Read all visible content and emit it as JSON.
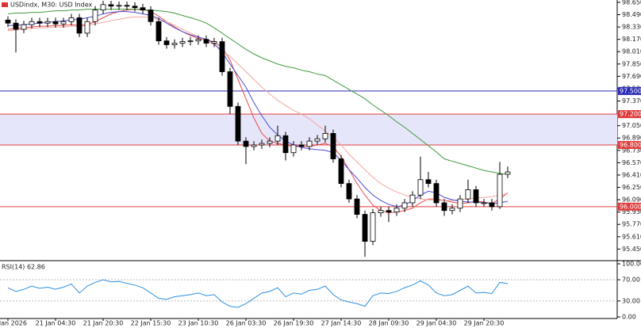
{
  "chart_data": {
    "type": "candlestick",
    "title": "USDindx, M30: USD Index",
    "categories": [
      "20 Jan 2026",
      null,
      null,
      null,
      null,
      null,
      "21 Jan 04:30",
      null,
      null,
      null,
      null,
      null,
      "21 Jan 20:30",
      null,
      null,
      null,
      null,
      null,
      "22 Jan 15:30",
      null,
      null,
      null,
      null,
      null,
      "23 Jan 10:30",
      null,
      null,
      null,
      null,
      null,
      "26 Jan 03:30",
      null,
      null,
      null,
      null,
      null,
      "26 Jan 19:30",
      null,
      null,
      null,
      null,
      null,
      "27 Jan 14:30",
      null,
      null,
      null,
      null,
      null,
      "28 Jan 09:30",
      null,
      null,
      null,
      null,
      null,
      "29 Jan 04:30",
      null,
      null,
      null,
      null,
      null,
      "29 Jan 20:30",
      null,
      null,
      null
    ],
    "open": [
      98.42,
      98.38,
      98.3,
      98.36,
      98.4,
      98.38,
      98.4,
      98.37,
      98.4,
      98.45,
      98.25,
      98.4,
      98.55,
      98.62,
      98.6,
      98.61,
      98.6,
      98.58,
      98.55,
      98.4,
      98.15,
      98.1,
      98.12,
      98.14,
      98.15,
      98.17,
      98.12,
      98.14,
      97.75,
      97.3,
      96.85,
      96.78,
      96.8,
      96.82,
      96.85,
      96.92,
      96.7,
      96.8,
      96.78,
      96.85,
      96.88,
      96.95,
      96.62,
      96.3,
      96.1,
      95.9,
      95.55,
      95.92,
      95.95,
      95.93,
      95.98,
      96.05,
      96.15,
      96.35,
      96.3,
      96.05,
      95.95,
      95.98,
      96.1,
      96.22,
      96.05,
      96.05,
      96.0,
      96.42
    ],
    "high": [
      98.47,
      98.43,
      98.41,
      98.45,
      98.45,
      98.45,
      98.45,
      98.45,
      98.5,
      98.5,
      98.45,
      98.6,
      98.67,
      98.67,
      98.66,
      98.66,
      98.65,
      98.63,
      98.6,
      98.45,
      98.2,
      98.17,
      98.19,
      98.2,
      98.22,
      98.22,
      98.19,
      98.19,
      97.8,
      97.35,
      96.9,
      96.85,
      96.87,
      96.9,
      97.05,
      96.97,
      96.85,
      96.85,
      96.9,
      96.93,
      97.05,
      97.0,
      96.67,
      96.35,
      96.15,
      95.95,
      95.97,
      96.0,
      96.0,
      96.03,
      96.1,
      96.2,
      96.65,
      96.45,
      96.35,
      96.1,
      96.03,
      96.15,
      96.35,
      96.27,
      96.1,
      96.1,
      96.58,
      96.52
    ],
    "low": [
      98.33,
      98.0,
      98.25,
      98.31,
      98.33,
      98.33,
      98.32,
      98.32,
      98.35,
      98.2,
      98.2,
      98.35,
      98.5,
      98.55,
      98.55,
      98.55,
      98.53,
      98.5,
      98.35,
      98.1,
      98.05,
      98.05,
      98.07,
      98.09,
      98.1,
      98.07,
      98.07,
      97.7,
      97.2,
      96.8,
      96.55,
      96.73,
      96.75,
      96.77,
      96.8,
      96.6,
      96.65,
      96.73,
      96.73,
      96.8,
      96.83,
      96.57,
      96.25,
      96.05,
      95.85,
      95.35,
      95.5,
      95.87,
      95.8,
      95.88,
      95.93,
      96.0,
      96.1,
      96.25,
      96.0,
      95.88,
      95.9,
      95.93,
      96.05,
      96.0,
      96.0,
      95.95,
      95.97,
      96.37
    ],
    "close": [
      98.38,
      98.3,
      98.36,
      98.4,
      98.38,
      98.4,
      98.37,
      98.4,
      98.45,
      98.25,
      98.4,
      98.55,
      98.62,
      98.6,
      98.61,
      98.6,
      98.58,
      98.55,
      98.4,
      98.15,
      98.1,
      98.12,
      98.14,
      98.15,
      98.17,
      98.12,
      98.14,
      97.75,
      97.3,
      96.85,
      96.78,
      96.8,
      96.82,
      96.85,
      96.92,
      96.7,
      96.8,
      96.78,
      96.85,
      96.88,
      96.95,
      96.62,
      96.3,
      96.1,
      95.9,
      95.55,
      95.92,
      95.95,
      95.93,
      95.98,
      96.05,
      96.15,
      96.35,
      96.3,
      96.05,
      95.95,
      95.98,
      96.1,
      96.22,
      96.05,
      96.05,
      96.0,
      96.42,
      96.45
    ],
    "candle_color": "#000000",
    "series": [
      {
        "color": "#e84a4a",
        "values": [
          98.3,
          98.31,
          98.32,
          98.33,
          98.34,
          98.34,
          98.35,
          98.35,
          98.36,
          98.35,
          98.36,
          98.4,
          98.45,
          98.5,
          98.53,
          98.55,
          98.56,
          98.56,
          98.53,
          98.47,
          98.4,
          98.33,
          98.27,
          98.22,
          98.18,
          98.16,
          98.14,
          98.06,
          97.9,
          97.65,
          97.4,
          97.15,
          96.95,
          96.85,
          96.82,
          96.8,
          96.78,
          96.78,
          96.78,
          96.8,
          96.82,
          96.78,
          96.65,
          96.48,
          96.3,
          96.15,
          96.02,
          95.95,
          95.92,
          95.93,
          95.95,
          95.98,
          96.05,
          96.1,
          96.1,
          96.08,
          96.06,
          96.04,
          96.05,
          96.07,
          96.06,
          96.04,
          96.1,
          96.18
        ]
      },
      {
        "color": "#f4a6a0",
        "values": [
          98.28,
          98.29,
          98.3,
          98.31,
          98.32,
          98.32,
          98.33,
          98.33,
          98.34,
          98.34,
          98.35,
          98.37,
          98.39,
          98.41,
          98.43,
          98.45,
          98.46,
          98.46,
          98.45,
          98.43,
          98.4,
          98.35,
          98.3,
          98.25,
          98.2,
          98.15,
          98.1,
          98.02,
          97.95,
          97.85,
          97.75,
          97.65,
          97.55,
          97.46,
          97.38,
          97.31,
          97.25,
          97.2,
          97.14,
          97.06,
          96.98,
          96.9,
          96.8,
          96.68,
          96.58,
          96.48,
          96.38,
          96.3,
          96.24,
          96.19,
          96.15,
          96.12,
          96.1,
          96.09,
          96.08,
          96.08,
          96.08,
          96.09,
          96.1,
          96.11,
          96.12,
          96.13,
          96.15,
          96.17
        ]
      },
      {
        "color": "#4b4bd8",
        "values": [
          98.35,
          98.35,
          98.36,
          98.37,
          98.38,
          98.39,
          98.4,
          98.41,
          98.42,
          98.43,
          98.45,
          98.47,
          98.5,
          98.52,
          98.53,
          98.53,
          98.52,
          98.5,
          98.48,
          98.44,
          98.38,
          98.32,
          98.27,
          98.23,
          98.2,
          98.17,
          98.12,
          98.0,
          97.85,
          97.7,
          97.55,
          97.35,
          97.18,
          97.03,
          96.93,
          96.85,
          96.8,
          96.77,
          96.75,
          96.74,
          96.73,
          96.7,
          96.6,
          96.48,
          96.37,
          96.25,
          96.15,
          96.08,
          96.03,
          96.0,
          96.02,
          96.08,
          96.15,
          96.2,
          96.18,
          96.12,
          96.09,
          96.07,
          96.06,
          96.06,
          96.05,
          96.04,
          96.05,
          96.07
        ]
      },
      {
        "color": "#3f9a3f",
        "values": [
          98.5,
          98.51,
          98.51,
          98.52,
          98.52,
          98.53,
          98.54,
          98.54,
          98.55,
          98.55,
          98.56,
          98.56,
          98.56,
          98.56,
          98.56,
          98.56,
          98.56,
          98.55,
          98.55,
          98.54,
          98.53,
          98.51,
          98.48,
          98.45,
          98.42,
          98.38,
          98.32,
          98.25,
          98.18,
          98.11,
          98.04,
          97.98,
          97.93,
          97.89,
          97.85,
          97.82,
          97.8,
          97.77,
          97.75,
          97.72,
          97.7,
          97.64,
          97.58,
          97.52,
          97.46,
          97.4,
          97.32,
          97.25,
          97.18,
          97.1,
          97.03,
          96.95,
          96.87,
          96.79,
          96.71,
          96.62,
          96.59,
          96.56,
          96.53,
          96.5,
          96.47,
          96.45,
          96.43,
          96.42
        ]
      }
    ],
    "levels": [
      {
        "value": 97.5,
        "label": "97.500",
        "color": "#2a2ab8"
      },
      {
        "value": 97.2,
        "label": "97.200",
        "color": "#e03c3c"
      },
      {
        "value": 96.8,
        "label": "96.800",
        "color": "#e03c3c"
      },
      {
        "value": 96.0,
        "label": "96.000",
        "color": "#e03c3c"
      }
    ],
    "zone": {
      "from": 96.8,
      "to": 97.2,
      "color": "#e6e6fa"
    },
    "ylim": [
      95.31,
      98.68
    ],
    "yticks": [
      {
        "value": 98.65,
        "label": "98.650"
      },
      {
        "value": 98.49,
        "label": "98.490"
      },
      {
        "value": 98.33,
        "label": "98.330"
      },
      {
        "value": 98.17,
        "label": "98.170"
      },
      {
        "value": 98.01,
        "label": "98.010"
      },
      {
        "value": 97.85,
        "label": "97.850"
      },
      {
        "value": 97.69,
        "label": "97.690"
      },
      {
        "value": 97.53,
        "label": "97.530"
      },
      {
        "value": 97.37,
        "label": "97.370"
      },
      {
        "value": 97.05,
        "label": "97.050"
      },
      {
        "value": 96.89,
        "label": "96.890"
      },
      {
        "value": 96.73,
        "label": "96.730"
      },
      {
        "value": 96.57,
        "label": "96.570"
      },
      {
        "value": 96.41,
        "label": "96.410"
      },
      {
        "value": 96.25,
        "label": "96.250"
      },
      {
        "value": 96.09,
        "label": "96.090"
      },
      {
        "value": 95.93,
        "label": "95.930"
      },
      {
        "value": 95.77,
        "label": "95.770"
      },
      {
        "value": 95.61,
        "label": "95.610"
      },
      {
        "value": 95.45,
        "label": "95.450"
      }
    ],
    "rsi": {
      "label": "RSI(14) 62.86",
      "color": "#2f8fe0",
      "values": [
        55,
        48,
        52,
        58,
        54,
        56,
        52,
        56,
        62,
        45,
        58,
        65,
        70,
        66,
        67,
        63,
        60,
        55,
        45,
        35,
        33,
        38,
        40,
        42,
        45,
        40,
        42,
        28,
        20,
        18,
        25,
        35,
        45,
        48,
        55,
        38,
        45,
        43,
        50,
        52,
        58,
        42,
        32,
        28,
        25,
        20,
        40,
        45,
        44,
        48,
        55,
        60,
        68,
        60,
        45,
        40,
        42,
        50,
        58,
        45,
        46,
        44,
        65,
        62.86
      ],
      "ylim": [
        0,
        100
      ],
      "yticks": [
        {
          "value": 100,
          "label": "100.00"
        },
        {
          "value": 70,
          "label": "70.00"
        },
        {
          "value": 30,
          "label": "30.00"
        },
        {
          "value": 0,
          "label": "0.00"
        }
      ],
      "levels": [
        70,
        30
      ]
    }
  }
}
